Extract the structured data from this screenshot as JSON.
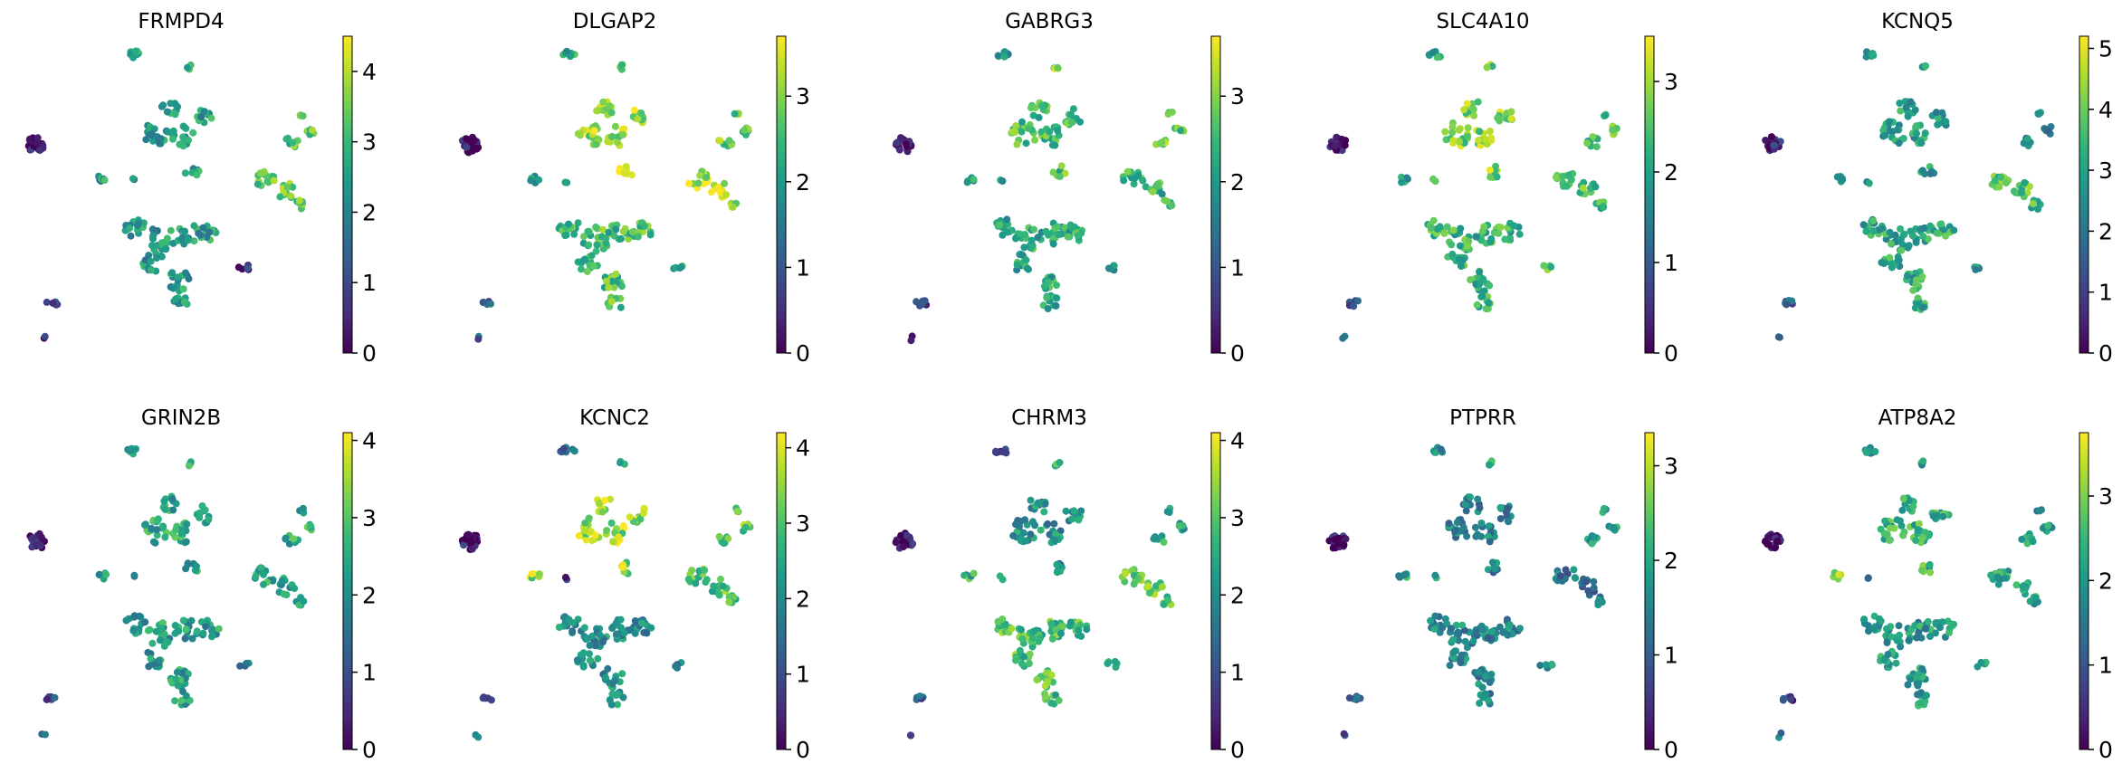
{
  "chart_data": {
    "type": "scatter",
    "plot_kind": "umap-gene-expression",
    "colormap": "viridis",
    "colormap_stops": [
      "#440154",
      "#482878",
      "#3e4989",
      "#31688e",
      "#26828e",
      "#1f9e89",
      "#35b779",
      "#6ece58",
      "#b5de2b",
      "#fde725"
    ],
    "layout": "2 rows x 5 columns",
    "panels": [
      {
        "title": "FRMPD4",
        "vmin": 0,
        "vmax": 4.5,
        "ticks": [
          0,
          1,
          2,
          3,
          4
        ]
      },
      {
        "title": "DLGAP2",
        "vmin": 0,
        "vmax": 3.7,
        "ticks": [
          0,
          1,
          2,
          3
        ]
      },
      {
        "title": "GABRG3",
        "vmin": 0,
        "vmax": 3.7,
        "ticks": [
          0,
          1,
          2,
          3
        ]
      },
      {
        "title": "SLC4A10",
        "vmin": 0,
        "vmax": 3.5,
        "ticks": [
          0,
          1,
          2,
          3
        ]
      },
      {
        "title": "KCNQ5",
        "vmin": 0,
        "vmax": 5.2,
        "ticks": [
          0,
          1,
          2,
          3,
          4,
          5
        ]
      },
      {
        "title": "GRIN2B",
        "vmin": 0,
        "vmax": 4.1,
        "ticks": [
          0,
          1,
          2,
          3,
          4
        ]
      },
      {
        "title": "KCNC2",
        "vmin": 0,
        "vmax": 4.2,
        "ticks": [
          0,
          1,
          2,
          3,
          4
        ]
      },
      {
        "title": "CHRM3",
        "vmin": 0,
        "vmax": 4.1,
        "ticks": [
          0,
          1,
          2,
          3,
          4
        ]
      },
      {
        "title": "PTPRR",
        "vmin": 0,
        "vmax": 3.35,
        "ticks": [
          0,
          1,
          2,
          3
        ]
      },
      {
        "title": "ATP8A2",
        "vmin": 0,
        "vmax": 3.75,
        "ticks": [
          0,
          1,
          2,
          3
        ]
      }
    ]
  }
}
